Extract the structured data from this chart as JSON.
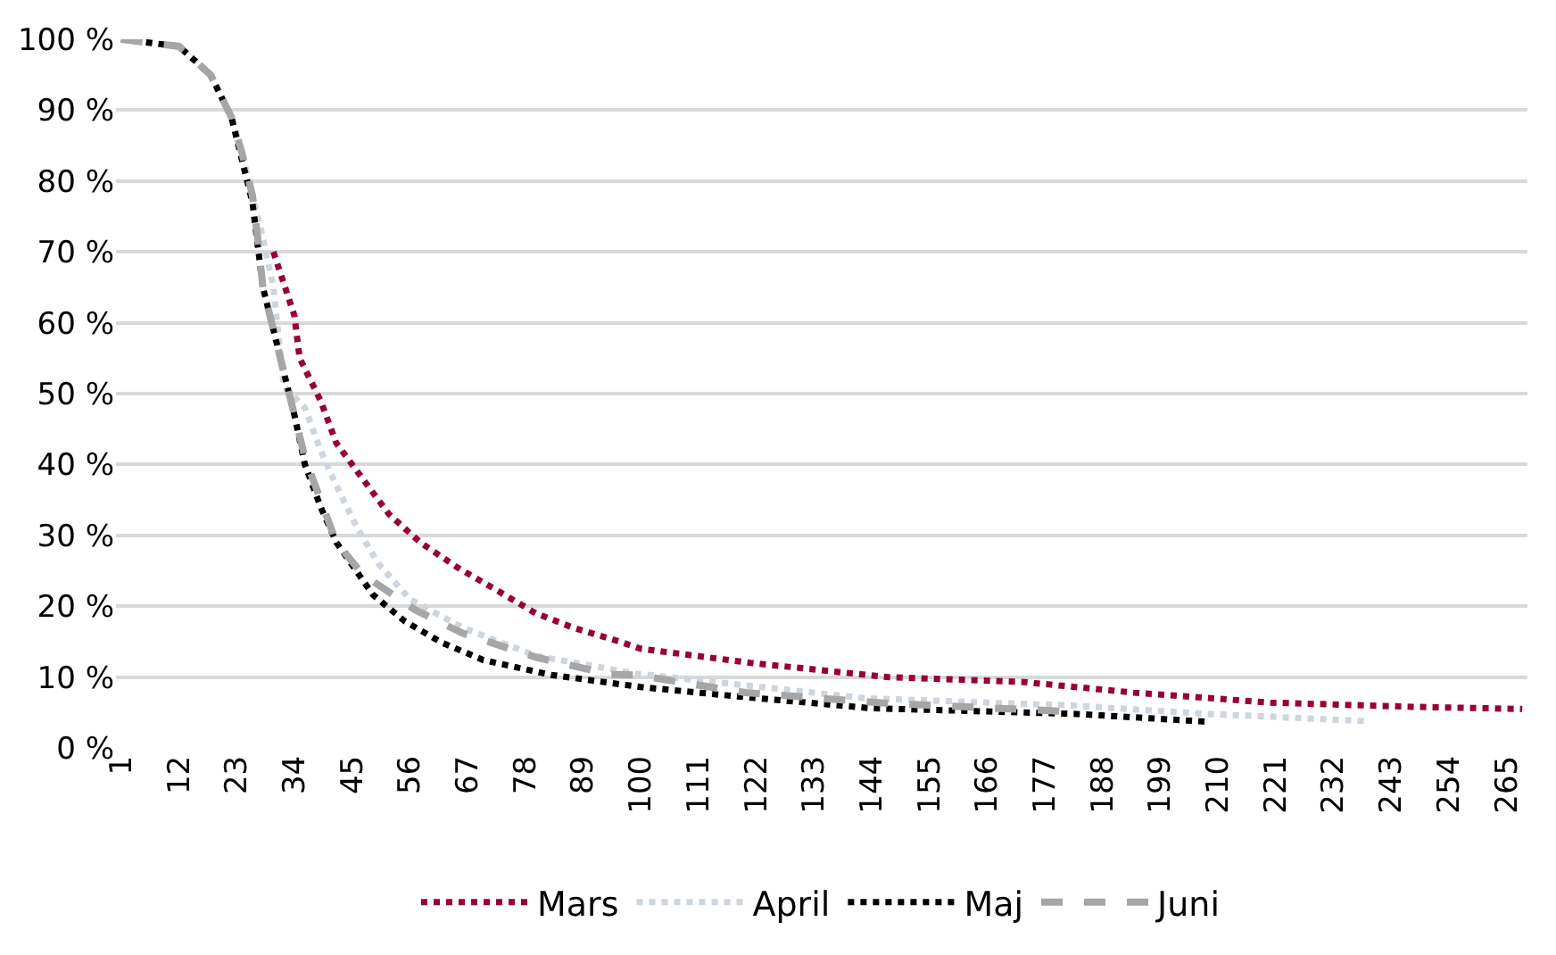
{
  "chart_data": {
    "type": "line",
    "legend": "bottom",
    "grid": "y",
    "marker": "none",
    "xlim": [
      0,
      269
    ],
    "xticks": [
      1,
      12,
      23,
      34,
      45,
      56,
      67,
      78,
      89,
      100,
      111,
      122,
      133,
      144,
      155,
      166,
      177,
      188,
      199,
      210,
      221,
      232,
      243,
      254,
      265
    ],
    "ylim": [
      0,
      100
    ],
    "yticks": [
      {
        "value": 0,
        "label": "0 %"
      },
      {
        "value": 10,
        "label": "10 %"
      },
      {
        "value": 20,
        "label": "20 %"
      },
      {
        "value": 30,
        "label": "30 %"
      },
      {
        "value": 40,
        "label": "40 %"
      },
      {
        "value": 50,
        "label": "50 %"
      },
      {
        "value": 60,
        "label": "60 %"
      },
      {
        "value": 70,
        "label": "70 %"
      },
      {
        "value": 80,
        "label": "80 %"
      },
      {
        "value": 90,
        "label": "90 %"
      },
      {
        "value": 100,
        "label": "100 %"
      }
    ],
    "series": [
      {
        "name": "Mars",
        "color": "#990033",
        "line_style": "dotted",
        "x": [
          30,
          34,
          35,
          39,
          42,
          47,
          52,
          58,
          65,
          72,
          80,
          87,
          96,
          100,
          121,
          147,
          173,
          194,
          220,
          247,
          268
        ],
        "values": [
          70,
          61,
          55,
          49,
          43,
          38,
          33,
          29,
          25.5,
          22.5,
          19,
          17,
          15,
          14,
          12,
          10,
          9.3,
          7.8,
          6.4,
          5.8,
          5.5
        ]
      },
      {
        "name": "April",
        "color": "#cdd5de",
        "line_style": "dotted",
        "x": [
          1,
          12,
          18,
          22,
          24,
          26,
          28,
          30,
          32,
          36,
          39,
          42,
          46,
          50,
          56,
          66,
          80,
          99,
          143,
          182,
          208,
          238
        ],
        "values": [
          100,
          99,
          95,
          89,
          84,
          78,
          72,
          65,
          51,
          48,
          42,
          37,
          31,
          26,
          21,
          17,
          13,
          10.5,
          7,
          6,
          4.8,
          3.8
        ]
      },
      {
        "name": "Maj",
        "color": "#000000",
        "line_style": "dotted",
        "x": [
          1,
          12,
          18,
          22,
          24,
          26,
          27,
          28,
          30,
          32,
          34,
          36,
          39,
          42,
          49,
          55,
          62,
          70,
          83,
          100,
          118,
          144,
          183,
          208
        ],
        "values": [
          100,
          99,
          95,
          89,
          83,
          77,
          71,
          65,
          59,
          53,
          47,
          40,
          34,
          29,
          21.6,
          17.9,
          14.9,
          12.4,
          10.3,
          8.6,
          7.3,
          5.6,
          4.8,
          3.7
        ]
      },
      {
        "name": "Juni",
        "color": "#a6a6a6",
        "line_style": "dashed",
        "x": [
          1,
          12,
          18,
          22,
          24,
          26,
          27,
          28,
          30,
          32,
          34,
          36,
          39,
          42,
          47,
          57,
          66,
          80,
          94,
          99,
          120,
          147,
          180
        ],
        "values": [
          100,
          99,
          95,
          89,
          84,
          78,
          72,
          65,
          59,
          53,
          47,
          41,
          35,
          29,
          24.5,
          19.5,
          16.2,
          12.8,
          10.4,
          10.3,
          7.8,
          6.3,
          5.2
        ]
      }
    ]
  }
}
